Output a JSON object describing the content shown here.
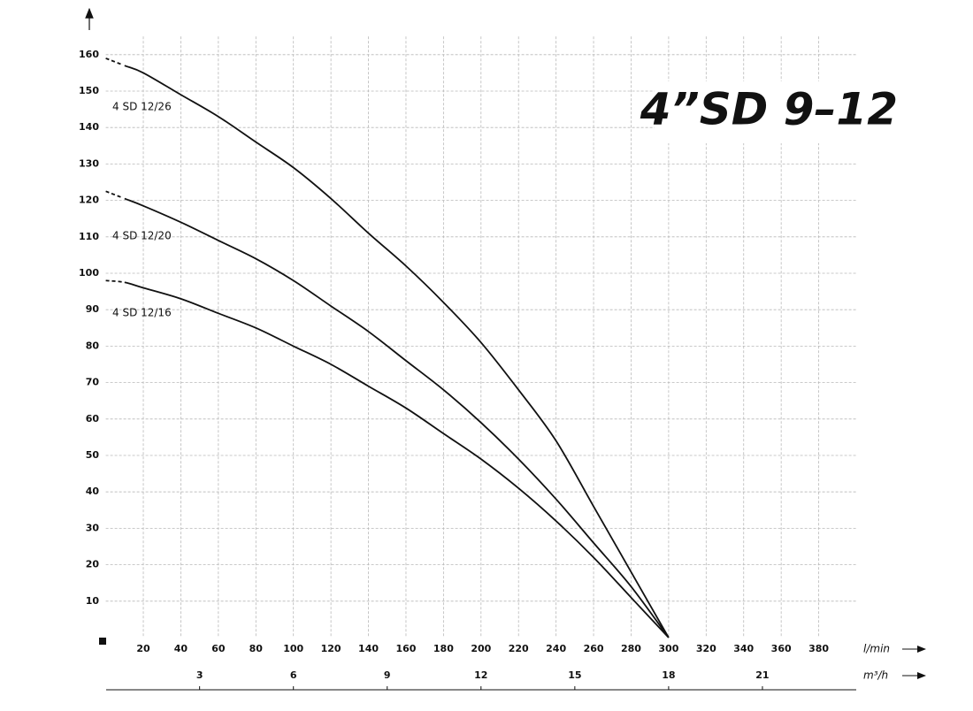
{
  "chart_data": {
    "type": "line",
    "title": "4”SD 9–12",
    "x_label": "l/min",
    "x2_label": "m³/h",
    "x": [
      0,
      10,
      20,
      40,
      60,
      80,
      100,
      120,
      140,
      160,
      180,
      200,
      220,
      240,
      260,
      280,
      300
    ],
    "series": [
      {
        "name": "4 SD 12/26",
        "color": "#111111",
        "values": [
          159,
          157,
          155,
          149,
          143,
          136,
          129,
          120.5,
          111,
          102,
          92,
          81,
          68,
          54,
          36,
          18,
          0
        ]
      },
      {
        "name": "4 SD 12/20",
        "color": "#111111",
        "values": [
          122.5,
          120.5,
          118.5,
          114,
          109,
          104,
          98,
          91,
          84,
          76,
          68,
          59,
          49,
          38,
          26,
          14,
          0
        ]
      },
      {
        "name": "4 SD 12/16",
        "color": "#111111",
        "values": [
          98,
          97.5,
          96,
          93,
          89,
          85,
          80,
          75,
          69,
          63,
          56,
          49,
          41,
          32,
          22,
          11,
          0
        ]
      }
    ],
    "dashed_first_segment": true,
    "xlim": [
      0,
      400
    ],
    "xticks": [
      20,
      40,
      60,
      80,
      100,
      120,
      140,
      160,
      180,
      200,
      220,
      240,
      260,
      280,
      300,
      320,
      340,
      360,
      380
    ],
    "x2lim": [
      0,
      24
    ],
    "x2ticks": [
      3,
      6,
      9,
      12,
      15,
      18,
      21
    ],
    "ylim": [
      0,
      165
    ],
    "yticks": [
      10,
      20,
      30,
      40,
      50,
      60,
      70,
      80,
      90,
      100,
      110,
      120,
      130,
      140,
      150,
      160
    ],
    "grid": true
  }
}
